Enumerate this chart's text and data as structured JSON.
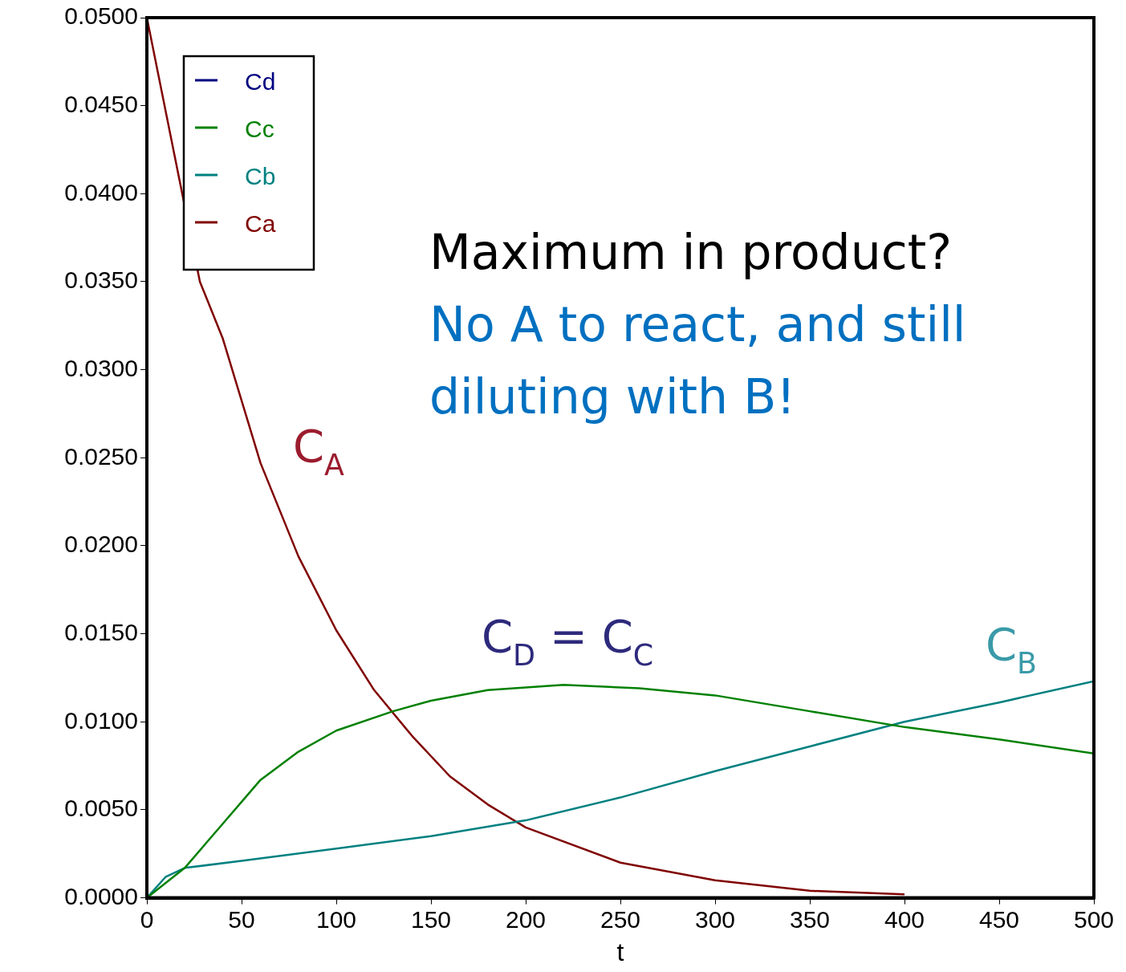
{
  "chart_data": {
    "type": "line",
    "xlabel": "t",
    "xlim": [
      0,
      500
    ],
    "xticks": [
      0,
      50,
      100,
      150,
      200,
      250,
      300,
      350,
      400,
      450,
      500
    ],
    "ylim": [
      0,
      0.05
    ],
    "yticks": [
      {
        "value": 0,
        "label": "0.0000"
      },
      {
        "value": 0.005,
        "label": "0.0050"
      },
      {
        "value": 0.01,
        "label": "0.0100"
      },
      {
        "value": 0.015,
        "label": "0.0150"
      },
      {
        "value": 0.02,
        "label": "0.0200"
      },
      {
        "value": 0.025,
        "label": "0.0250"
      },
      {
        "value": 0.03,
        "label": "0.0300"
      },
      {
        "value": 0.035,
        "label": "0.0350"
      },
      {
        "value": 0.04,
        "label": "0.0400"
      },
      {
        "value": 0.045,
        "label": "0.0450"
      },
      {
        "value": 0.05,
        "label": "0.0500"
      }
    ],
    "grid": false,
    "legend": "top left",
    "marker": "none",
    "line_style": "solid",
    "series": [
      {
        "name": "Cd",
        "color": "#000080"
      },
      {
        "name": "Cc",
        "color": "#008000",
        "x": [
          0,
          20,
          40,
          60,
          80,
          100,
          130,
          150,
          180,
          220,
          260,
          300,
          350,
          400,
          450,
          500
        ],
        "values": [
          0,
          0.0017,
          0.0042,
          0.0067,
          0.0083,
          0.0095,
          0.0106,
          0.0112,
          0.0118,
          0.0121,
          0.0119,
          0.0115,
          0.0106,
          0.0097,
          0.009,
          0.0082
        ]
      },
      {
        "name": "Cb",
        "color": "#008080",
        "x": [
          0,
          10,
          20,
          50,
          100,
          150,
          200,
          250,
          300,
          350,
          400,
          450,
          500
        ],
        "values": [
          0,
          0.0012,
          0.0017,
          0.0021,
          0.0028,
          0.0035,
          0.0044,
          0.0057,
          0.0072,
          0.0086,
          0.01,
          0.0111,
          0.0123
        ]
      },
      {
        "name": "Ca",
        "color": "#800000",
        "x": [
          0,
          28,
          40,
          60,
          80,
          100,
          120,
          140,
          160,
          180,
          200,
          250,
          300,
          350,
          400
        ],
        "values": [
          0.05,
          0.035,
          0.0318,
          0.0247,
          0.0194,
          0.0152,
          0.0118,
          0.0092,
          0.0069,
          0.0053,
          0.004,
          0.002,
          0.001,
          0.0004,
          0.0002
        ]
      }
    ],
    "annotations": [
      "C$_{A}$",
      "C$_{D}$ = C$_{C}$",
      "C$_{B}$",
      "Maximum in product?",
      "No A to react, and still diluting with B!"
    ]
  }
}
